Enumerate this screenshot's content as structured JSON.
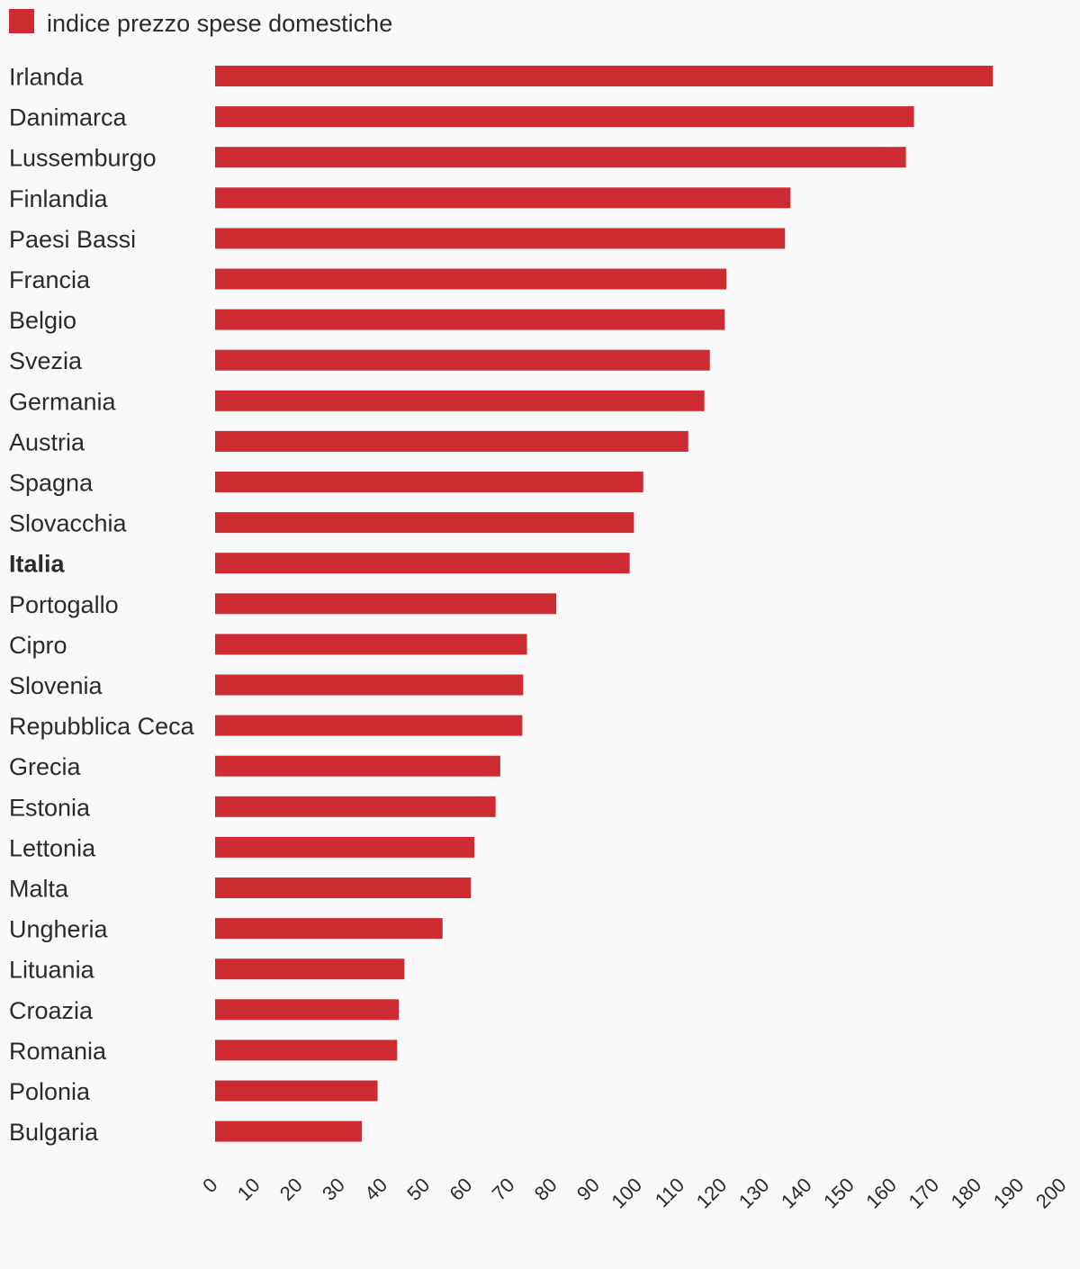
{
  "chart_data": {
    "type": "bar",
    "orientation": "horizontal",
    "title": "",
    "xlabel": "",
    "ylabel": "",
    "xlim": [
      0,
      200
    ],
    "ticks": [
      0,
      10,
      20,
      30,
      40,
      50,
      60,
      70,
      80,
      90,
      100,
      110,
      120,
      130,
      140,
      150,
      160,
      170,
      180,
      190,
      200
    ],
    "grid": false,
    "legend_position": "top-left",
    "highlight": "Italia",
    "bar_color": "#ce2b32",
    "categories": [
      "Irlanda",
      "Danimarca",
      "Lussemburgo",
      "Finlandia",
      "Paesi Bassi",
      "Francia",
      "Belgio",
      "Svezia",
      "Germania",
      "Austria",
      "Spagna",
      "Slovacchia",
      "Italia",
      "Portogallo",
      "Cipro",
      "Slovenia",
      "Repubblica Ceca",
      "Grecia",
      "Estonia",
      "Lettonia",
      "Malta",
      "Ungheria",
      "Lituania",
      "Croazia",
      "Romania",
      "Polonia",
      "Bulgaria"
    ],
    "series": [
      {
        "name": "indice prezzo spese domestiche",
        "values": [
          183.3,
          164.7,
          162.8,
          135.6,
          134.3,
          120.5,
          120.1,
          116.6,
          115.3,
          111.5,
          100.9,
          98.7,
          97.7,
          80.4,
          73.5,
          72.6,
          72.4,
          67.2,
          66.1,
          61.1,
          60.3,
          53.6,
          44.6,
          43.3,
          42.9,
          38.3,
          34.6
        ]
      }
    ]
  }
}
